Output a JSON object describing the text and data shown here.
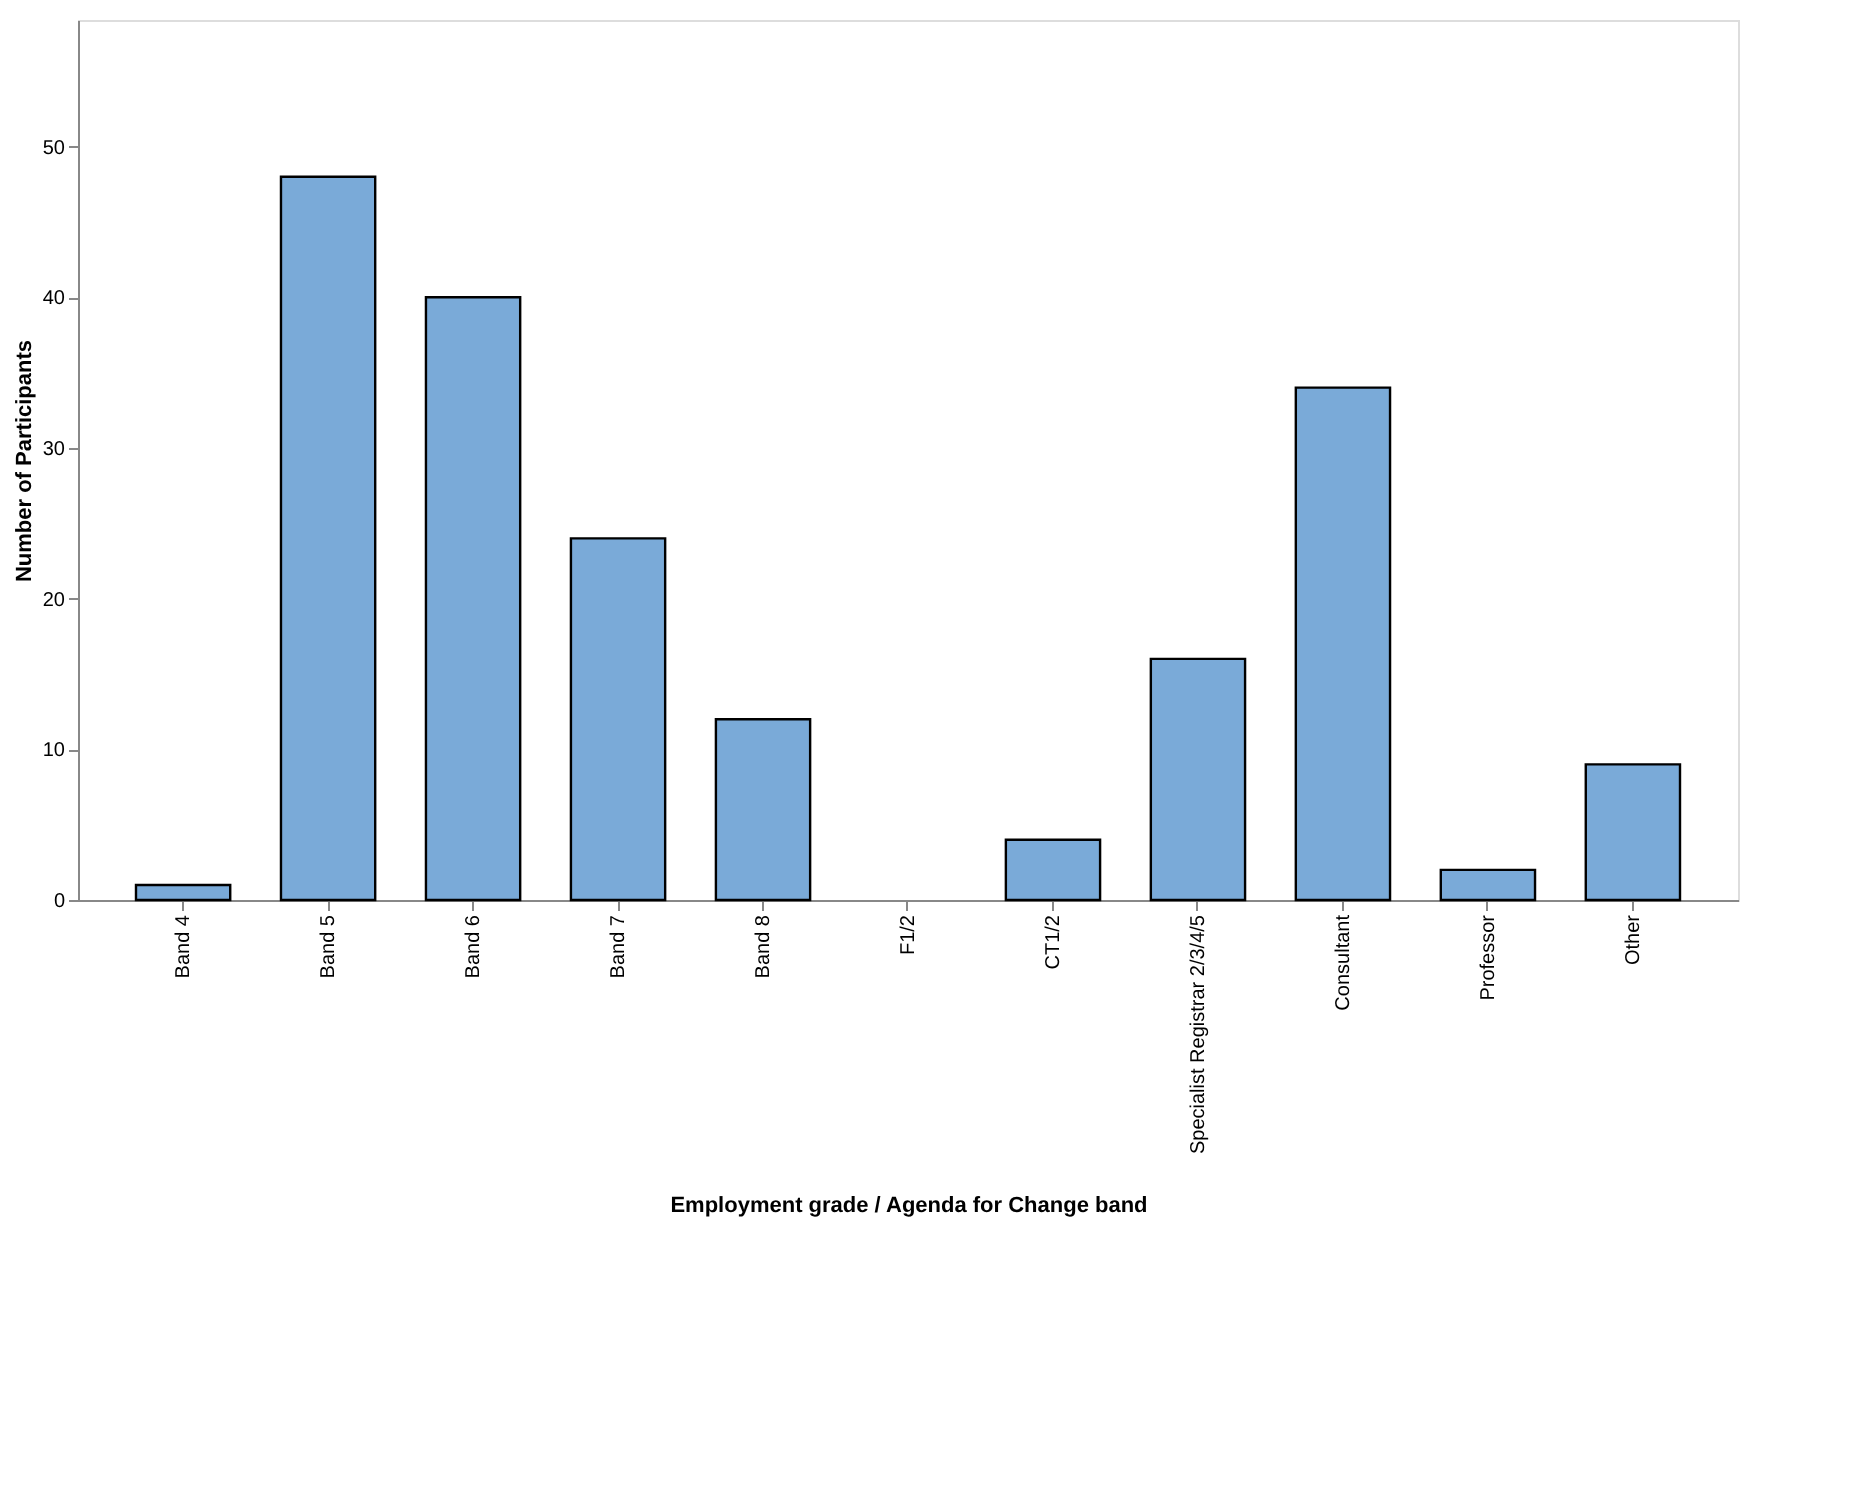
{
  "chart_data": {
    "type": "bar",
    "xlabel": "Employment grade / Agenda for Change band",
    "ylabel": "Number of Participants",
    "categories": [
      "Band 4",
      "Band 5",
      "Band 6",
      "Band 7",
      "Band 8",
      "F1/2",
      "CT1/2",
      "Specialist Registrar 2/3/4/5",
      "Consultant",
      "Professor",
      "Other"
    ],
    "values": [
      1,
      48,
      40,
      24,
      12,
      0,
      4,
      16,
      34,
      2,
      9
    ],
    "color": "#7aaad8",
    "ylim": [
      0,
      58.4
    ],
    "yticks": [
      0,
      10,
      20,
      30,
      40,
      50
    ],
    "grid": false
  }
}
